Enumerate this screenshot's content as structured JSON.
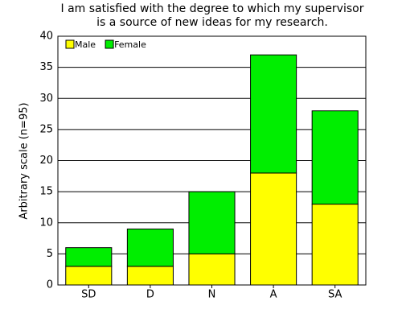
{
  "chart_data": {
    "type": "stacked_bar",
    "title": [
      "I am satisfied with the degree to which my supervisor",
      "is a source of new ideas for my research."
    ],
    "y_label": "Arbitrary scale (n=95)",
    "categories": [
      "SD",
      "D",
      "N",
      "A",
      "SA"
    ],
    "series": [
      {
        "name": "Male",
        "color": "#ffff00",
        "values": [
          3,
          3,
          5,
          18,
          13
        ]
      },
      {
        "name": "Female",
        "color": "#00ee00",
        "values": [
          3,
          6,
          10,
          19,
          15
        ]
      }
    ],
    "ylim": [
      0,
      40
    ],
    "yticks": [
      0,
      5,
      10,
      15,
      20,
      25,
      30,
      35,
      40
    ],
    "grid": true,
    "legend": "top-left"
  }
}
